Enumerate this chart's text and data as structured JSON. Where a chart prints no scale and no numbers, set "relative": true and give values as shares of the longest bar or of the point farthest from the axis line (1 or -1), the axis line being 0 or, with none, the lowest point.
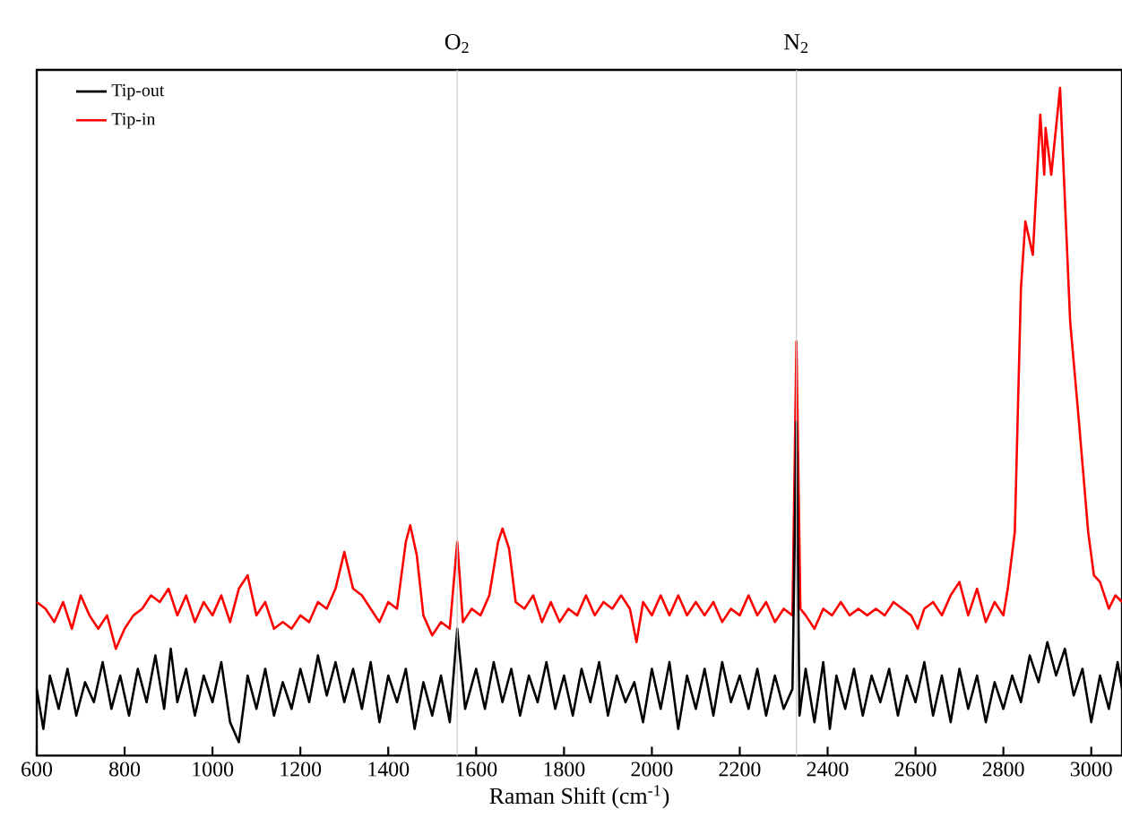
{
  "chart_data": {
    "type": "line",
    "relative": true,
    "xlabel": "Raman Shift (cm$^{-1}$)",
    "xlim": [
      600,
      3070
    ],
    "xticks": [
      600,
      800,
      1000,
      1200,
      1400,
      1600,
      1800,
      2000,
      2200,
      2400,
      2600,
      2800,
      3000
    ],
    "tick_labels": "x",
    "legend": "top left",
    "ref_lines": [
      {
        "axis": "x",
        "value": 1557,
        "label": "O$_{2}$",
        "color": "#c8c8c8"
      },
      {
        "axis": "x",
        "value": 2329,
        "label": "N$_{2}$",
        "color": "#c8c8c8"
      }
    ],
    "series": [
      {
        "name": "Tip-out",
        "color": "#000000",
        "x": [
          600,
          615,
          630,
          650,
          670,
          690,
          710,
          730,
          750,
          770,
          790,
          810,
          830,
          850,
          870,
          890,
          905,
          920,
          940,
          960,
          980,
          1000,
          1020,
          1040,
          1060,
          1080,
          1100,
          1120,
          1140,
          1160,
          1180,
          1200,
          1220,
          1240,
          1260,
          1280,
          1300,
          1320,
          1340,
          1360,
          1380,
          1400,
          1420,
          1440,
          1460,
          1480,
          1500,
          1520,
          1540,
          1557,
          1575,
          1600,
          1620,
          1640,
          1660,
          1680,
          1700,
          1720,
          1740,
          1760,
          1780,
          1800,
          1820,
          1840,
          1860,
          1880,
          1900,
          1920,
          1940,
          1960,
          1980,
          2000,
          2020,
          2040,
          2060,
          2080,
          2100,
          2120,
          2140,
          2160,
          2180,
          2200,
          2220,
          2240,
          2260,
          2280,
          2300,
          2320,
          2329,
          2336,
          2350,
          2370,
          2390,
          2405,
          2420,
          2440,
          2460,
          2480,
          2500,
          2520,
          2540,
          2560,
          2580,
          2600,
          2620,
          2640,
          2660,
          2680,
          2700,
          2720,
          2740,
          2760,
          2780,
          2800,
          2820,
          2840,
          2860,
          2880,
          2900,
          2920,
          2940,
          2960,
          2980,
          3000,
          3020,
          3040,
          3060,
          3070
        ],
        "values": [
          0.1,
          0.04,
          0.12,
          0.07,
          0.13,
          0.06,
          0.11,
          0.08,
          0.14,
          0.07,
          0.12,
          0.06,
          0.13,
          0.08,
          0.15,
          0.07,
          0.16,
          0.08,
          0.13,
          0.06,
          0.12,
          0.08,
          0.14,
          0.05,
          0.02,
          0.12,
          0.07,
          0.13,
          0.06,
          0.11,
          0.07,
          0.13,
          0.08,
          0.15,
          0.09,
          0.14,
          0.08,
          0.13,
          0.07,
          0.14,
          0.05,
          0.12,
          0.08,
          0.13,
          0.04,
          0.11,
          0.06,
          0.12,
          0.05,
          0.19,
          0.07,
          0.13,
          0.07,
          0.14,
          0.08,
          0.13,
          0.06,
          0.12,
          0.08,
          0.14,
          0.07,
          0.12,
          0.06,
          0.13,
          0.08,
          0.14,
          0.06,
          0.12,
          0.08,
          0.11,
          0.05,
          0.13,
          0.07,
          0.14,
          0.04,
          0.12,
          0.07,
          0.13,
          0.06,
          0.14,
          0.08,
          0.12,
          0.07,
          0.13,
          0.06,
          0.12,
          0.07,
          0.1,
          0.5,
          0.06,
          0.13,
          0.05,
          0.14,
          0.04,
          0.12,
          0.07,
          0.13,
          0.06,
          0.12,
          0.08,
          0.13,
          0.06,
          0.12,
          0.08,
          0.14,
          0.06,
          0.12,
          0.05,
          0.13,
          0.07,
          0.12,
          0.05,
          0.11,
          0.07,
          0.12,
          0.08,
          0.15,
          0.11,
          0.17,
          0.12,
          0.16,
          0.09,
          0.13,
          0.05,
          0.12,
          0.07,
          0.14,
          0.1
        ]
      },
      {
        "name": "Tip-in",
        "color": "#ff0000",
        "x": [
          600,
          620,
          640,
          660,
          680,
          700,
          720,
          740,
          760,
          780,
          800,
          820,
          840,
          860,
          880,
          900,
          920,
          940,
          960,
          980,
          1000,
          1020,
          1040,
          1060,
          1080,
          1100,
          1120,
          1140,
          1160,
          1180,
          1200,
          1220,
          1240,
          1260,
          1280,
          1300,
          1320,
          1340,
          1360,
          1380,
          1400,
          1420,
          1440,
          1450,
          1465,
          1480,
          1500,
          1520,
          1540,
          1557,
          1570,
          1590,
          1610,
          1630,
          1650,
          1660,
          1675,
          1690,
          1710,
          1730,
          1750,
          1770,
          1790,
          1810,
          1830,
          1850,
          1870,
          1890,
          1910,
          1930,
          1950,
          1965,
          1980,
          2000,
          2020,
          2040,
          2060,
          2080,
          2100,
          2120,
          2140,
          2160,
          2180,
          2200,
          2220,
          2240,
          2260,
          2280,
          2300,
          2320,
          2329,
          2338,
          2350,
          2370,
          2390,
          2410,
          2430,
          2450,
          2470,
          2490,
          2510,
          2530,
          2550,
          2570,
          2590,
          2605,
          2620,
          2640,
          2660,
          2680,
          2700,
          2720,
          2740,
          2760,
          2780,
          2800,
          2810,
          2826,
          2840,
          2850,
          2867,
          2884,
          2893,
          2896,
          2909,
          2929,
          2952,
          2972,
          2993,
          3006,
          3020,
          3040,
          3055,
          3070
        ],
        "values": [
          0.23,
          0.22,
          0.2,
          0.23,
          0.19,
          0.24,
          0.21,
          0.19,
          0.21,
          0.16,
          0.19,
          0.21,
          0.22,
          0.24,
          0.23,
          0.25,
          0.21,
          0.24,
          0.2,
          0.23,
          0.21,
          0.24,
          0.2,
          0.25,
          0.27,
          0.21,
          0.23,
          0.19,
          0.2,
          0.19,
          0.21,
          0.2,
          0.23,
          0.22,
          0.25,
          0.305,
          0.25,
          0.24,
          0.22,
          0.2,
          0.23,
          0.22,
          0.32,
          0.345,
          0.3,
          0.21,
          0.18,
          0.2,
          0.19,
          0.32,
          0.2,
          0.22,
          0.21,
          0.24,
          0.32,
          0.34,
          0.31,
          0.23,
          0.22,
          0.24,
          0.2,
          0.23,
          0.2,
          0.22,
          0.21,
          0.24,
          0.21,
          0.23,
          0.22,
          0.24,
          0.22,
          0.17,
          0.23,
          0.21,
          0.24,
          0.21,
          0.24,
          0.21,
          0.23,
          0.21,
          0.23,
          0.2,
          0.22,
          0.21,
          0.24,
          0.21,
          0.23,
          0.2,
          0.22,
          0.21,
          0.62,
          0.22,
          0.21,
          0.19,
          0.22,
          0.21,
          0.23,
          0.21,
          0.22,
          0.21,
          0.22,
          0.21,
          0.23,
          0.22,
          0.21,
          0.19,
          0.22,
          0.23,
          0.21,
          0.24,
          0.26,
          0.21,
          0.25,
          0.2,
          0.23,
          0.21,
          0.25,
          0.335,
          0.7,
          0.8,
          0.75,
          0.96,
          0.87,
          0.94,
          0.87,
          1.0,
          0.65,
          0.5,
          0.335,
          0.27,
          0.26,
          0.22,
          0.24,
          0.23
        ]
      }
    ]
  }
}
